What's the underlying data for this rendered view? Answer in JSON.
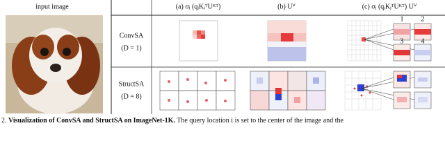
{
  "header": {
    "input": "input image",
    "col_a": "(a) σⱼ (qᵢKⱼᵀUᴷᵀ)",
    "col_b": "(b) Uⱽ",
    "col_c": "(c) σⱼ (qᵢKⱼᵀUᴷᵀ) Uⱽ"
  },
  "rows": [
    {
      "name": "ConvSA",
      "param": "(D = 1)"
    },
    {
      "name": "StructSA",
      "param": "(D = 8)"
    }
  ],
  "panel_labels": [
    "1",
    "2",
    "3",
    "4"
  ],
  "caption": {
    "number": "2.",
    "title": "Visualization of ConvSA and StructSA on ImageNet-1K.",
    "text": "The query location i is set to the center of the image and the"
  }
}
